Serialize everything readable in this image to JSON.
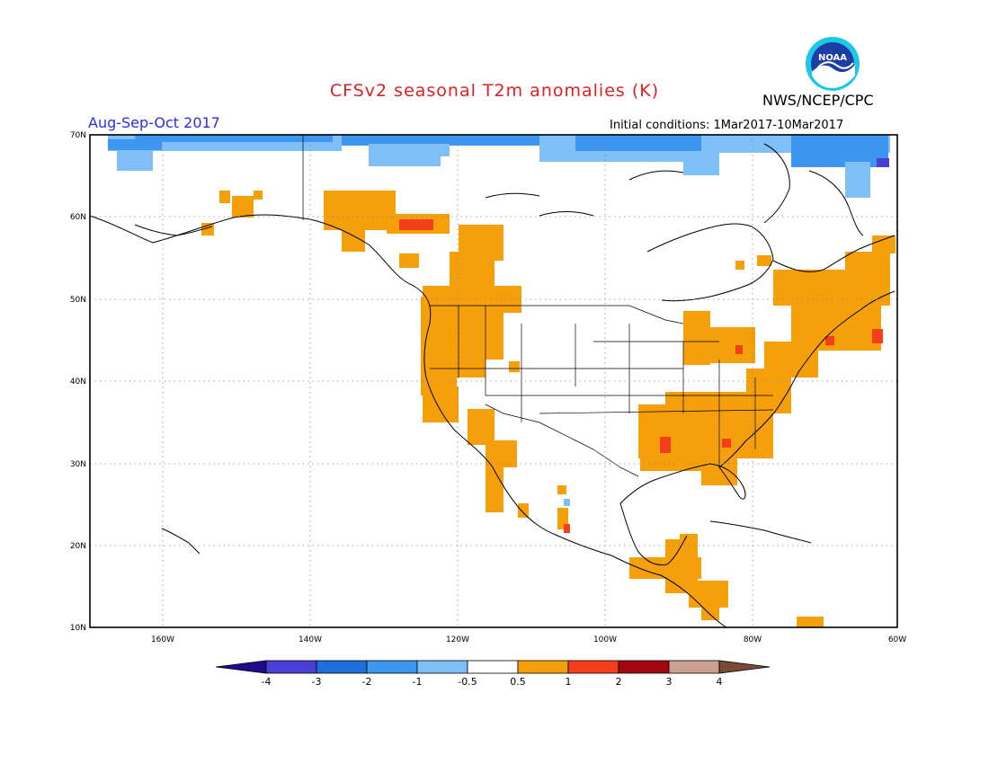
{
  "title": "CFSv2 seasonal T2m anomalies (K)",
  "agency": "NWS/NCEP/CPC",
  "logo_text": "NOAA",
  "period": "Aug-Sep-Oct 2017",
  "initial_conditions": "Initial conditions: 1Mar2017-10Mar2017",
  "lat_labels": [
    "70N",
    "60N",
    "50N",
    "40N",
    "30N",
    "20N",
    "10N"
  ],
  "lon_labels": [
    "160W",
    "140W",
    "120W",
    "100W",
    "80W",
    "60W"
  ],
  "colorbar": {
    "labels": [
      "-4",
      "-3",
      "-2",
      "-1",
      "-0.5",
      "0.5",
      "1",
      "2",
      "3",
      "4"
    ],
    "colors": [
      "#1f0a8c",
      "#4a3fd4",
      "#1e6fd9",
      "#3d96ef",
      "#7fbff7",
      "#ffffff",
      "#f5a00a",
      "#f33f1c",
      "#a3070d",
      "#c9a091",
      "#7a4a36"
    ]
  },
  "colors": {
    "title": "#e02020",
    "period": "#2c2ce8",
    "warm": "#f5a00a",
    "warm_strong": "#f33f1c",
    "cold_light": "#7fbff7",
    "cold": "#3d96ef"
  }
}
